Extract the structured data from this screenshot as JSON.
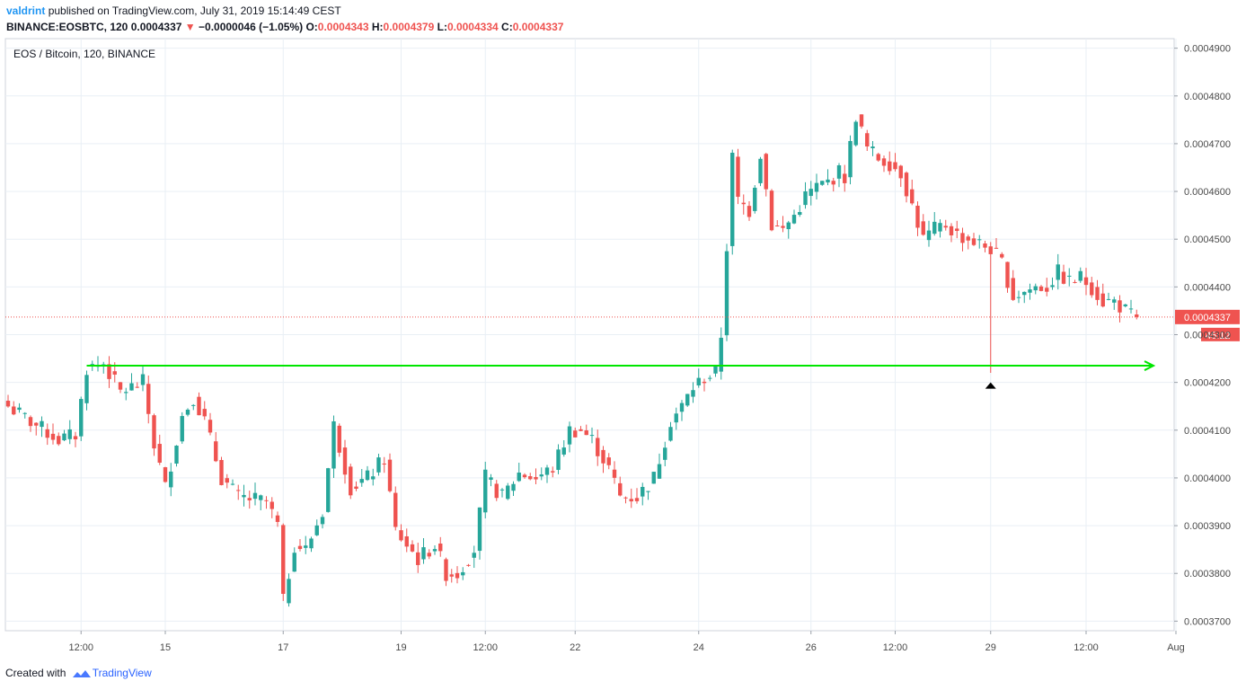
{
  "header": {
    "author": "valdrint",
    "published_text": "published on TradingView.com, July 31, 2019 15:14:49 CEST",
    "symbol": "BINANCE:EOSBTC, 120",
    "last": "0.0004337",
    "change": "−0.0000046 (−1.05%)",
    "open_label": "O:",
    "open": "0.0004343",
    "high_label": "H:",
    "high": "0.0004379",
    "low_label": "L:",
    "low": "0.0004334",
    "close_label": "C:",
    "close": "0.0004337"
  },
  "footer": {
    "created_with": "Created with",
    "brand": "TradingView"
  },
  "colors": {
    "up": "#26a69a",
    "down": "#ef5350",
    "support_line": "#00e600",
    "grid": "#e9eff5",
    "axis_text": "#4a4a4a",
    "price_tag": "#ef5350"
  },
  "chart_data": {
    "type": "candlestick",
    "title": "EOS / Bitcoin, 120, BINANCE",
    "y_axis": {
      "ylim": [
        0.000368,
        0.000492
      ],
      "ticks": [
        "0.0004900",
        "0.0004800",
        "0.0004700",
        "0.0004600",
        "0.0004500",
        "0.0004400",
        "0.0004300",
        "0.0004200",
        "0.0004100",
        "0.0004000",
        "0.0003900",
        "0.0003800",
        "0.0003700"
      ],
      "tick_values": [
        0.00049,
        0.00048,
        0.00047,
        0.00046,
        0.00045,
        0.00044,
        0.00043,
        0.00042,
        0.00041,
        0.0004,
        0.00039,
        0.00038,
        0.00037
      ]
    },
    "x_axis": {
      "ticks": [
        "12:00",
        "15",
        "17",
        "19",
        "12:00",
        "22",
        "24",
        "26",
        "12:00",
        "29",
        "12:00",
        "Aug"
      ],
      "tick_candle_index": [
        13,
        28,
        49,
        70,
        85,
        101,
        123,
        143,
        158,
        175,
        192,
        208
      ]
    },
    "current_price": {
      "value": 0.0004337,
      "label": "0.0004337",
      "countdown": "45:12"
    },
    "support_line": {
      "price": 0.0004235,
      "from_candle": 14,
      "to_candle": 204
    },
    "marker": {
      "candle_index": 175,
      "shape": "triangle-up"
    },
    "close_path": [
      [
        0,
        0.000415
      ],
      [
        5,
        0.000411
      ],
      [
        9,
        0.000408
      ],
      [
        12,
        0.000409
      ],
      [
        14,
        0.000423
      ],
      [
        17,
        0.000424
      ],
      [
        20,
        0.000418
      ],
      [
        24,
        0.00042
      ],
      [
        26,
        0.000407
      ],
      [
        28,
        0.000398
      ],
      [
        31,
        0.000413
      ],
      [
        33,
        0.000417
      ],
      [
        35,
        0.000412
      ],
      [
        38,
        0.0004
      ],
      [
        41,
        0.000396
      ],
      [
        46,
        0.000395
      ],
      [
        48,
        0.00039
      ],
      [
        49,
        0.000374
      ],
      [
        51,
        0.000386
      ],
      [
        53,
        0.000385
      ],
      [
        56,
        0.000393
      ],
      [
        58,
        0.000411
      ],
      [
        61,
        0.000398
      ],
      [
        64,
        0.0004
      ],
      [
        67,
        0.000404
      ],
      [
        69,
        0.000389
      ],
      [
        71,
        0.000386
      ],
      [
        73,
        0.000383
      ],
      [
        76,
        0.000386
      ],
      [
        78,
        0.00038
      ],
      [
        80,
        0.00038
      ],
      [
        83,
        0.000385
      ],
      [
        85,
        0.0004
      ],
      [
        88,
        0.000396
      ],
      [
        91,
        0.000401
      ],
      [
        94,
        0.0004
      ],
      [
        97,
        0.000402
      ],
      [
        100,
        0.00041
      ],
      [
        102,
        0.00041
      ],
      [
        104,
        0.000408
      ],
      [
        107,
        0.000402
      ],
      [
        109,
        0.000396
      ],
      [
        112,
        0.000396
      ],
      [
        115,
        0.0004
      ],
      [
        118,
        0.000412
      ],
      [
        120,
        0.000415
      ],
      [
        122,
        0.000419
      ],
      [
        124,
        0.000421
      ],
      [
        126,
        0.000422
      ],
      [
        127,
        0.00043
      ],
      [
        129,
        0.000467
      ],
      [
        130,
        0.000458
      ],
      [
        132,
        0.000456
      ],
      [
        134,
        0.000468
      ],
      [
        136,
        0.000453
      ],
      [
        138,
        0.000452
      ],
      [
        140,
        0.000455
      ],
      [
        142,
        0.000459
      ],
      [
        144,
        0.000461
      ],
      [
        146,
        0.000462
      ],
      [
        148,
        0.000464
      ],
      [
        149,
        0.000463
      ],
      [
        151,
        0.000476
      ],
      [
        153,
        0.000469
      ],
      [
        155,
        0.000467
      ],
      [
        157,
        0.000466
      ],
      [
        159,
        0.000464
      ],
      [
        161,
        0.000457
      ],
      [
        163,
        0.00045
      ],
      [
        165,
        0.000452
      ],
      [
        167,
        0.000453
      ],
      [
        169,
        0.000451
      ],
      [
        171,
        0.00045
      ],
      [
        173,
        0.000449
      ],
      [
        175,
        0.000448
      ],
      [
        177,
        0.000445
      ],
      [
        179,
        0.000438
      ],
      [
        181,
        0.000439
      ],
      [
        183,
        0.00044
      ],
      [
        185,
        0.00044
      ],
      [
        187,
        0.000443
      ],
      [
        189,
        0.000441
      ],
      [
        191,
        0.000442
      ],
      [
        193,
        0.00044
      ],
      [
        195,
        0.000437
      ],
      [
        197,
        0.000437
      ],
      [
        200,
        0.000434
      ],
      [
        201,
        0.0004337
      ]
    ]
  }
}
